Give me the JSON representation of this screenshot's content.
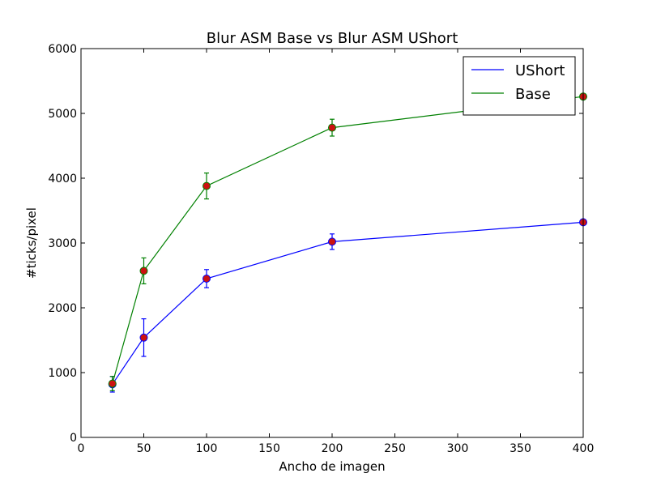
{
  "chart_data": {
    "type": "line",
    "title": "Blur ASM Base vs Blur ASM UShort",
    "xlabel": "Ancho de imagen",
    "ylabel": "#ticks/pixel",
    "xlim": [
      0,
      400
    ],
    "ylim": [
      0,
      6000
    ],
    "xticks": [
      0,
      50,
      100,
      150,
      200,
      250,
      300,
      350,
      400
    ],
    "yticks": [
      0,
      1000,
      2000,
      3000,
      4000,
      5000,
      6000
    ],
    "x": [
      25,
      50,
      100,
      200,
      400
    ],
    "grid": false,
    "legend_position": "top-right",
    "marker_color": "#cc1111",
    "series": [
      {
        "name": "UShort",
        "color": "#0000ff",
        "values": [
          820,
          1540,
          2450,
          3020,
          3320
        ],
        "errors": [
          120,
          290,
          140,
          120,
          0
        ]
      },
      {
        "name": "Base",
        "color": "#008000",
        "values": [
          830,
          2570,
          3880,
          4780,
          5260
        ],
        "errors": [
          110,
          200,
          200,
          130,
          0
        ]
      }
    ]
  }
}
